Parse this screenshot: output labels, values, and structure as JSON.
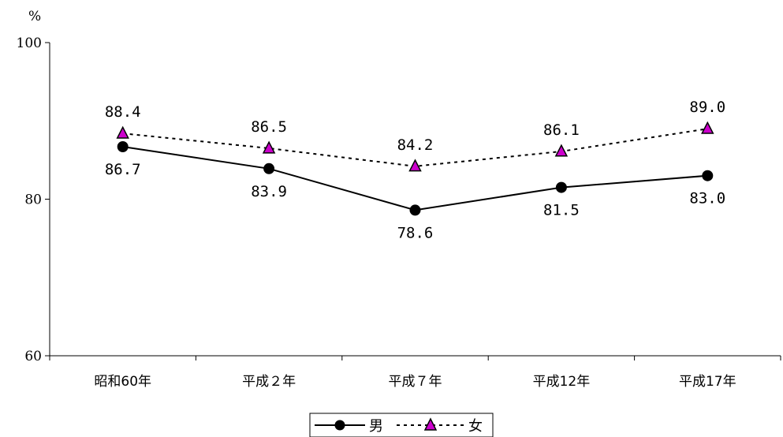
{
  "chart_data": {
    "type": "line",
    "ylabel": "%",
    "ylim": [
      60,
      100
    ],
    "yticks": [
      60,
      80,
      100
    ],
    "categories": [
      "昭和60年",
      "平成２年",
      "平成７年",
      "平成12年",
      "平成17年"
    ],
    "series": [
      {
        "name": "男",
        "values": [
          86.7,
          83.9,
          78.6,
          81.5,
          83.0
        ],
        "value_labels": [
          "86.7",
          "83.9",
          "78.6",
          "81.5",
          "83.0"
        ],
        "line_style": "solid",
        "marker": "circle",
        "line_color": "#000000",
        "marker_color": "#000000"
      },
      {
        "name": "女",
        "values": [
          88.4,
          86.5,
          84.2,
          86.1,
          89.0
        ],
        "value_labels": [
          "88.4",
          "86.5",
          "84.2",
          "86.1",
          "89.0"
        ],
        "line_style": "dotted",
        "marker": "triangle",
        "line_color": "#000000",
        "marker_color": "#cc00cc"
      }
    ],
    "legend_position": "bottom",
    "grid": false
  }
}
